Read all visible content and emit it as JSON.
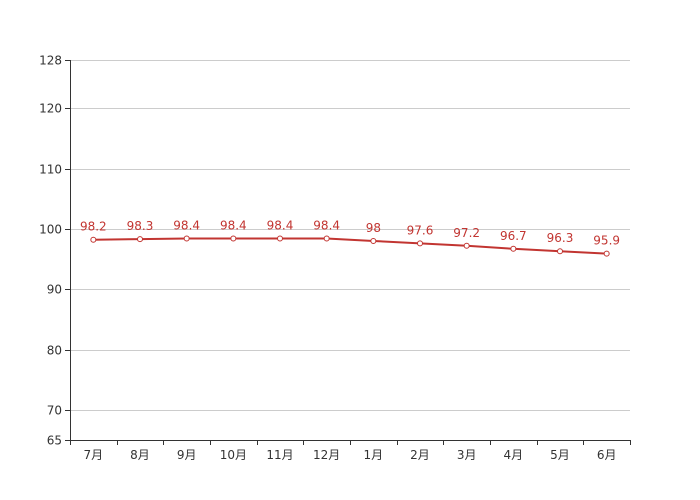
{
  "chart_data": {
    "type": "line",
    "title": "",
    "xlabel": "",
    "ylabel": "",
    "categories": [
      "7月",
      "8月",
      "9月",
      "10月",
      "11月",
      "12月",
      "1月",
      "2月",
      "3月",
      "4月",
      "5月",
      "6月"
    ],
    "series": [
      {
        "values": [
          98.2,
          98.3,
          98.4,
          98.4,
          98.4,
          98.4,
          98,
          97.6,
          97.2,
          96.7,
          96.3,
          95.9
        ],
        "labels": [
          "98.2",
          "98.3",
          "98.4",
          "98.4",
          "98.4",
          "98.4",
          "98",
          "97.6",
          "97.2",
          "96.7",
          "96.3",
          "95.9"
        ],
        "color": "#c23531"
      }
    ],
    "ylim": [
      65,
      128
    ],
    "yticks": [
      65,
      70,
      80,
      90,
      100,
      110,
      120,
      128
    ],
    "ytick_labels": [
      "65",
      "70",
      "80",
      "90",
      "100",
      "110",
      "120",
      "128"
    ],
    "grid": true,
    "legend": "none"
  }
}
